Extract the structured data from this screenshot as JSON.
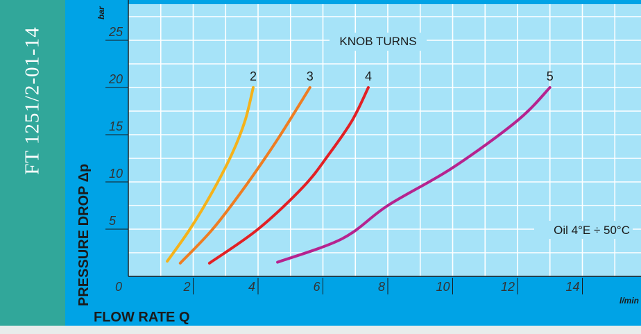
{
  "side_code": "FT 1251/2-01-14",
  "chart_data": {
    "type": "line",
    "annotation_title": "KNOB TURNS",
    "annotation_oil": "Oil 4°E ÷ 50°C",
    "xlabel": "FLOW RATE Q",
    "ylabel": "PRESSURE DROP Δp",
    "x_unit": "l/min",
    "y_unit": "bar",
    "xlim": [
      0,
      16
    ],
    "ylim": [
      0,
      29
    ],
    "x_ticks": [
      "0",
      "2",
      "4",
      "6",
      "8",
      "10",
      "12",
      "14"
    ],
    "y_ticks": [
      "5",
      "10",
      "15",
      "20",
      "25"
    ],
    "grid": true,
    "series": [
      {
        "name": "2",
        "color": "#f5b21a",
        "x": [
          1.2,
          1.9,
          2.6,
          3.2,
          3.6,
          3.85
        ],
        "y": [
          1.6,
          5,
          9,
          13,
          16.5,
          20
        ]
      },
      {
        "name": "3",
        "color": "#ee7d22",
        "x": [
          1.6,
          2.6,
          3.6,
          4.6,
          5.6
        ],
        "y": [
          1.4,
          5,
          9.5,
          14.5,
          20
        ]
      },
      {
        "name": "4",
        "color": "#e22025",
        "x": [
          2.5,
          4.0,
          5.4,
          6.2,
          6.9,
          7.4
        ],
        "y": [
          1.4,
          5,
          9.5,
          13,
          16.5,
          20
        ]
      },
      {
        "name": "5",
        "color": "#b6238f",
        "x": [
          4.6,
          6.6,
          8.0,
          10.0,
          12.0,
          13.0
        ],
        "y": [
          1.5,
          4,
          7.5,
          11.5,
          16.5,
          20
        ]
      }
    ]
  }
}
